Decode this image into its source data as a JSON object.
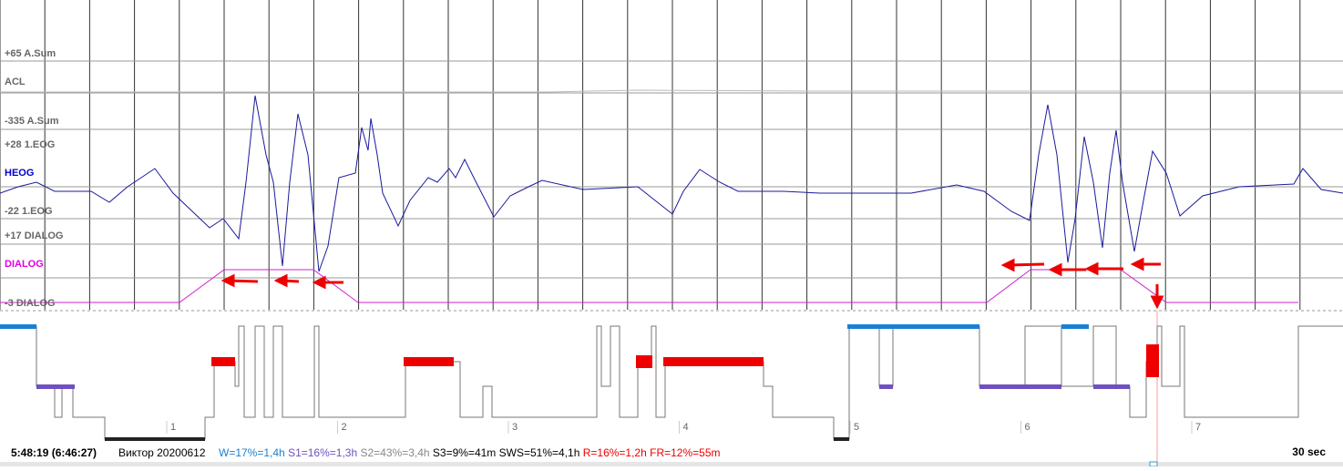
{
  "channels": [
    "+65 A.Sum",
    "ACL",
    "-335 A.Sum",
    "+28 1.EOG",
    "HEOG",
    "-22 1.EOG",
    "+17 DIALOG",
    "DIALOG",
    "-3 DIALOG"
  ],
  "hypnogram": {
    "hours": [
      "1",
      "2",
      "3",
      "4",
      "5",
      "6",
      "7"
    ]
  },
  "status": {
    "time": "5:48:19 (6:46:27)",
    "subject": "Виктор 20200612",
    "w": "W=17%=1,4h",
    "s1": "S1=16%=1,3h",
    "s2": "S2=43%=3,4h",
    "s3": "S3=9%=41m",
    "sws": "SWS=51%=4,1h",
    "r": "R=16%=1,2h",
    "fr": "FR=12%=55m",
    "epoch": "30 sec"
  }
}
